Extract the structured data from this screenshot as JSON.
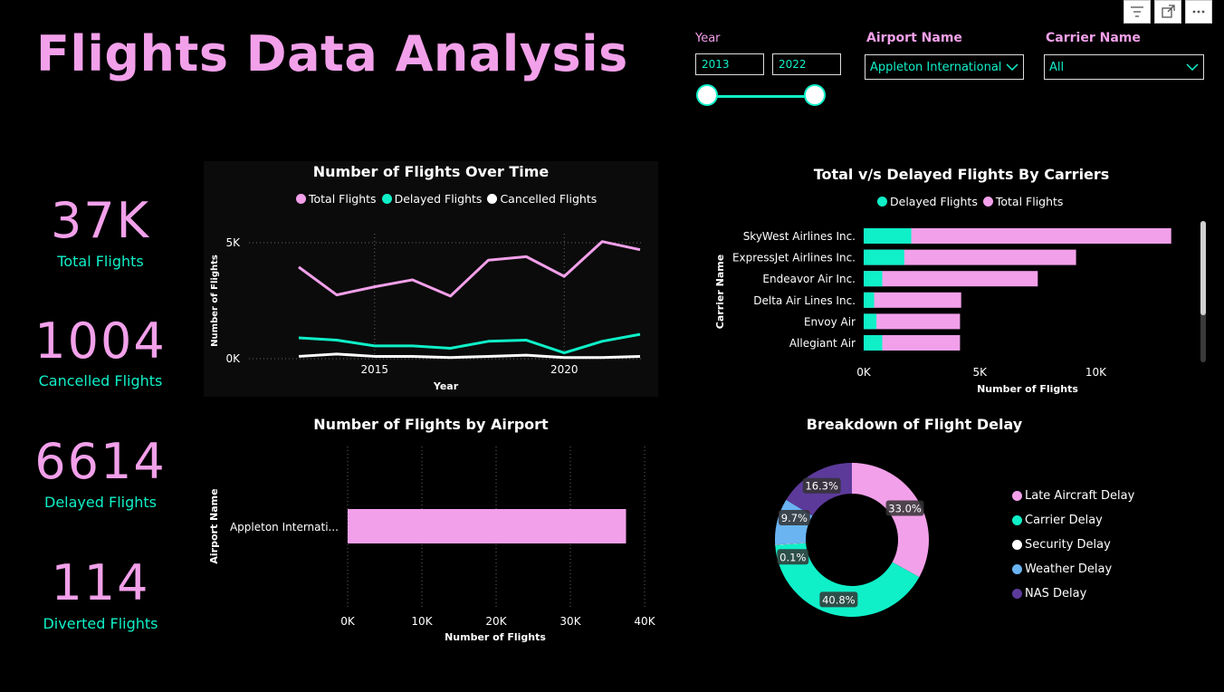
{
  "title": "Flights Data Analysis",
  "toolbar_icons": [
    "filter-icon",
    "focus-mode-icon",
    "more-options-icon"
  ],
  "slicers": {
    "year": {
      "label": "Year",
      "start": "2013",
      "end": "2022"
    },
    "airport": {
      "label": "Airport Name",
      "value": "Appleton International"
    },
    "carrier": {
      "label": "Carrier Name",
      "value": "All"
    }
  },
  "kpis": [
    {
      "value": "37K",
      "label": "Total Flights"
    },
    {
      "value": "1004",
      "label": "Cancelled Flights"
    },
    {
      "value": "6614",
      "label": "Delayed Flights"
    },
    {
      "value": "114",
      "label": "Diverted Flights"
    }
  ],
  "colors": {
    "pink": "#f2a0ea",
    "teal": "#0ff0c8",
    "white": "#ffffff",
    "blue": "#6ab4f2",
    "purple": "#5c3a9a"
  },
  "chart_data": [
    {
      "type": "line",
      "title": "Number of Flights Over Time",
      "xlabel": "Year",
      "ylabel": "Number of Flights",
      "x": [
        2013,
        2014,
        2015,
        2016,
        2017,
        2018,
        2019,
        2020,
        2021,
        2022
      ],
      "xticks": [
        "2015",
        "2020"
      ],
      "yticks": [
        "0K",
        "5K"
      ],
      "ylim": [
        0,
        5000
      ],
      "legend_position": "top",
      "series": [
        {
          "name": "Total Flights",
          "color": "#f2a0ea",
          "values": [
            3950,
            2750,
            3100,
            3400,
            2700,
            4250,
            4400,
            3550,
            5050,
            4700
          ]
        },
        {
          "name": "Delayed Flights",
          "color": "#0ff0c8",
          "values": [
            900,
            800,
            550,
            550,
            450,
            750,
            800,
            250,
            750,
            1050
          ]
        },
        {
          "name": "Cancelled Flights",
          "color": "#ffffff",
          "values": [
            100,
            200,
            100,
            100,
            50,
            100,
            150,
            50,
            50,
            100
          ]
        }
      ]
    },
    {
      "type": "bar",
      "orientation": "horizontal",
      "title": "Total v/s Delayed Flights By Carriers",
      "xlabel": "Number of Flights",
      "ylabel": "Carrier Name",
      "xticks": [
        "0K",
        "5K",
        "10K"
      ],
      "xlim": [
        0,
        13300
      ],
      "legend_position": "top",
      "categories": [
        "SkyWest Airlines Inc.",
        "ExpressJet Airlines Inc.",
        "Endeavor Air Inc.",
        "Delta Air Lines Inc.",
        "Envoy Air",
        "Allegiant Air"
      ],
      "series": [
        {
          "name": "Delayed Flights",
          "color": "#0ff0c8",
          "values": [
            2050,
            1750,
            800,
            450,
            550,
            800
          ]
        },
        {
          "name": "Total Flights",
          "color": "#f2a0ea",
          "values": [
            13250,
            9150,
            7500,
            4200,
            4150,
            4150
          ]
        }
      ]
    },
    {
      "type": "bar",
      "orientation": "horizontal",
      "title": "Number of Flights by Airport",
      "xlabel": "Number of Flights",
      "ylabel": "Airport Name",
      "xticks": [
        "0K",
        "10K",
        "20K",
        "30K",
        "40K"
      ],
      "xlim": [
        0,
        40000
      ],
      "categories": [
        "Appleton Internati..."
      ],
      "values": [
        37500
      ]
    },
    {
      "type": "pie",
      "title": "Breakdown of Flight Delay",
      "legend_position": "right",
      "slices": [
        {
          "label": "Late Aircraft Delay",
          "value": 33.0,
          "display": "33.0%",
          "color": "#f2a0ea"
        },
        {
          "label": "Carrier Delay",
          "value": 40.8,
          "display": "40.8%",
          "color": "#0ff0c8"
        },
        {
          "label": "Security Delay",
          "value": 0.1,
          "display": "0.1%",
          "color": "#ffffff"
        },
        {
          "label": "Weather Delay",
          "value": 9.7,
          "display": "9.7%",
          "color": "#6ab4f2"
        },
        {
          "label": "NAS Delay",
          "value": 16.3,
          "display": "16.3%",
          "color": "#5c3a9a"
        }
      ]
    }
  ]
}
